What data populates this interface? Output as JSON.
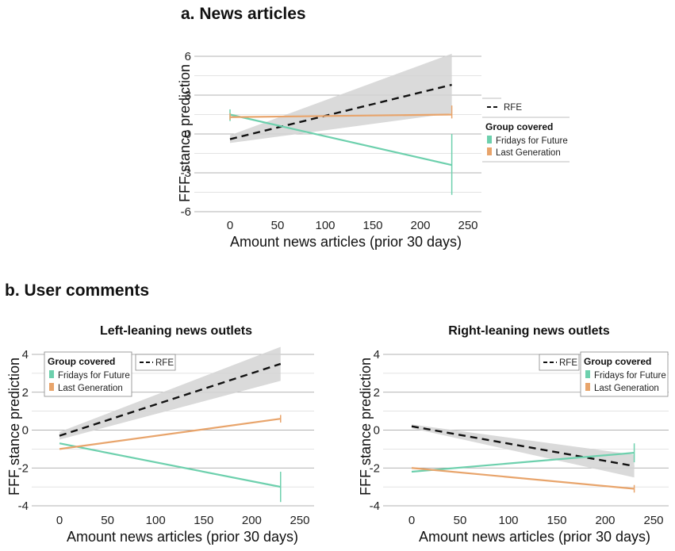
{
  "colors": {
    "rfe": "#111111",
    "fridays_for_future": "#6dd0ad",
    "last_generation": "#e8a46b",
    "ci_band": "#d4d4d4",
    "grid": "#9a9a9a"
  },
  "sections": {
    "a_title": "a. News articles",
    "b_title": "b. User comments"
  },
  "chart_data": [
    {
      "id": "news",
      "type": "line",
      "title": "",
      "xlabel": "Amount news articles (prior 30 days)",
      "ylabel": "FFF stance prediction",
      "xlim": [
        -10,
        255
      ],
      "ylim": [
        -6.3,
        6.8
      ],
      "xticks": [
        "0",
        "50",
        "100",
        "150",
        "200",
        "250"
      ],
      "yticks": [
        "-6",
        "-3",
        "0",
        "3",
        "6"
      ],
      "grid": "horizontal",
      "legend": {
        "placement": "right",
        "rfe_label": "RFE",
        "group_title": "Group covered",
        "items": [
          "Fridays for Future",
          "Last Generation"
        ]
      },
      "series": [
        {
          "name": "RFE",
          "style": "dashed",
          "x": [
            0,
            233
          ],
          "y": [
            -0.4,
            3.8
          ],
          "ci_lower": [
            -0.7,
            1.6
          ],
          "ci_upper": [
            -0.1,
            6.2
          ]
        },
        {
          "name": "Fridays for Future",
          "x": [
            0,
            233
          ],
          "y": [
            1.5,
            -2.4
          ],
          "err_at_start": [
            1.0,
            1.9
          ],
          "err_at_end": [
            -4.7,
            0.0
          ]
        },
        {
          "name": "Last Generation",
          "x": [
            0,
            233
          ],
          "y": [
            1.3,
            1.5
          ],
          "err_at_start": [
            1.1,
            1.6
          ],
          "err_at_end": [
            1.2,
            2.2
          ]
        }
      ]
    },
    {
      "id": "left",
      "type": "line",
      "title": "Left-leaning news outlets",
      "xlabel": "Amount news articles (prior 30 days)",
      "ylabel": "FFF stance prediction",
      "xlim": [
        -10,
        255
      ],
      "ylim": [
        -4.2,
        4.3
      ],
      "xticks": [
        "0",
        "50",
        "100",
        "150",
        "200",
        "250"
      ],
      "yticks": [
        "-4",
        "-2",
        "0",
        "2",
        "4"
      ],
      "grid": "horizontal",
      "legend": {
        "placement": "top",
        "rfe_label": "RFE",
        "group_title": "Group covered",
        "items": [
          "Fridays for Future",
          "Last Generation"
        ]
      },
      "series": [
        {
          "name": "RFE",
          "style": "dashed",
          "x": [
            0,
            230
          ],
          "y": [
            -0.3,
            3.5
          ],
          "ci_lower": [
            -0.5,
            2.6
          ],
          "ci_upper": [
            -0.1,
            4.4
          ]
        },
        {
          "name": "Fridays for Future",
          "x": [
            0,
            230
          ],
          "y": [
            -0.7,
            -3.0
          ],
          "err_at_end": [
            -3.8,
            -2.2
          ]
        },
        {
          "name": "Last Generation",
          "x": [
            0,
            230
          ],
          "y": [
            -1.0,
            0.6
          ],
          "err_at_end": [
            0.4,
            0.8
          ]
        }
      ]
    },
    {
      "id": "right",
      "type": "line",
      "title": "Right-leaning news outlets",
      "xlabel": "Amount news articles (prior 30 days)",
      "ylabel": "FFF stance prediction",
      "xlim": [
        -10,
        255
      ],
      "ylim": [
        -4.2,
        4.3
      ],
      "xticks": [
        "0",
        "50",
        "100",
        "150",
        "200",
        "250"
      ],
      "yticks": [
        "-4",
        "-2",
        "0",
        "2",
        "4"
      ],
      "grid": "horizontal",
      "legend": {
        "placement": "top-right",
        "rfe_label": "RFE",
        "group_title": "Group covered",
        "items": [
          "Fridays for Future",
          "Last Generation"
        ]
      },
      "series": [
        {
          "name": "RFE",
          "style": "dashed",
          "x": [
            0,
            230
          ],
          "y": [
            0.2,
            -1.9
          ],
          "ci_lower": [
            0.1,
            -2.5
          ],
          "ci_upper": [
            0.3,
            -1.3
          ]
        },
        {
          "name": "Fridays for Future",
          "x": [
            0,
            230
          ],
          "y": [
            -2.2,
            -1.2
          ],
          "err_at_end": [
            -1.7,
            -0.7
          ]
        },
        {
          "name": "Last Generation",
          "x": [
            0,
            230
          ],
          "y": [
            -2.0,
            -3.1
          ],
          "err_at_end": [
            -3.3,
            -2.9
          ]
        }
      ]
    }
  ]
}
